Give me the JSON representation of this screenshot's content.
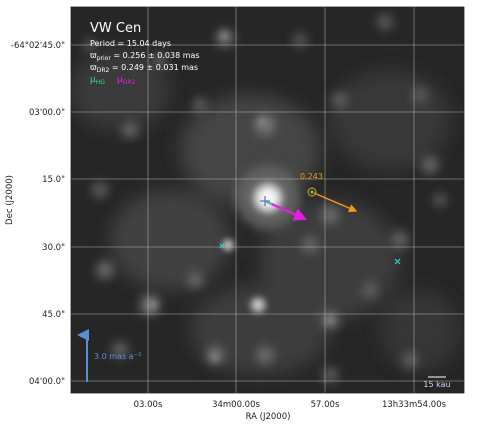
{
  "figure": {
    "title": "VW Cen",
    "period_text": "Period =  15.04 days",
    "prior_label": "ϖ",
    "prior_sub": "prior",
    "prior_value": " = 0.256 ± 0.038 mas",
    "dr2_label": "ϖ",
    "dr2_sub": "DR2",
    "dr2_value": " = 0.249 ± 0.031 mas",
    "mu_hg_label": "μ",
    "mu_hg_sub": "HG",
    "mu_dr2_label": "μ",
    "mu_dr2_sub": "DR2",
    "parallax_annotation": "0.243",
    "scale_arrow_text": "3.0 mas a",
    "scale_arrow_exp": "−1",
    "scale_bar_text": "15 kau"
  },
  "axes": {
    "xlabel": "RA (J2000)",
    "ylabel": "Dec (J2000)",
    "xticks": [
      "03.00s",
      "34m00.00s",
      "57.00s",
      "13h33m54.00s"
    ],
    "yticks": [
      "-64°02'45.0\"",
      "03'00.0\"",
      "15.0\"",
      "30.0\"",
      "45.0\"",
      "04'00.0\""
    ]
  },
  "colors": {
    "mu_hg": "#2ee07a",
    "mu_dr2": "#e21fe0",
    "companion_arrow": "#f39a1c",
    "scale_arrow": "#5a8fd8",
    "markers": "#2ad6d6",
    "target_cross": "#6b82c8"
  }
}
